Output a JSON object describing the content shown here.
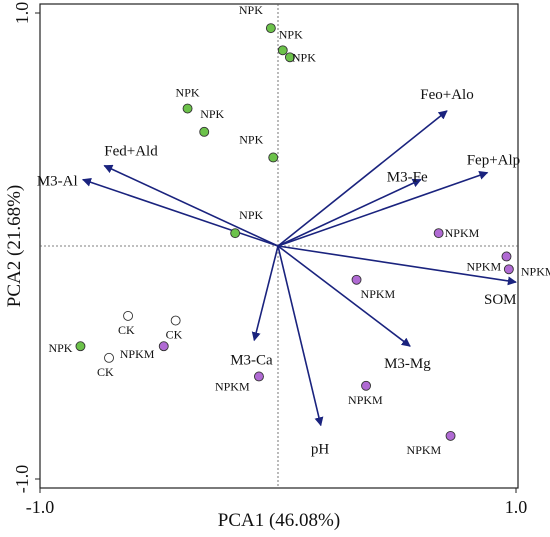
{
  "chart_data": {
    "type": "scatter",
    "title": "",
    "xlabel": "PCA1 (46.08%)",
    "ylabel": "PCA2 (21.68%)",
    "xlim": [
      -1.0,
      1.0
    ],
    "ylim": [
      -1.0,
      1.0
    ],
    "xticks": [
      {
        "value": -1.0,
        "label": "-1.0"
      },
      {
        "value": 1.0,
        "label": "1.0"
      }
    ],
    "yticks": [
      {
        "value": 1.0,
        "label": "1.0"
      },
      {
        "value": -1.0,
        "label": "-1.0"
      }
    ],
    "grid": false,
    "zero_lines": true,
    "colors": {
      "NPK": "#6cc24a",
      "NPKM": "#b06ad3",
      "CK": "#ffffff",
      "vector": "#1a237e",
      "marker_edge": "#333333"
    },
    "points": [
      {
        "group": "NPK",
        "label": "NPK",
        "x": -0.03,
        "y": 0.935
      },
      {
        "group": "NPK",
        "label": "NPK",
        "x": 0.02,
        "y": 0.84
      },
      {
        "group": "NPK",
        "label": "NPK",
        "x": 0.05,
        "y": 0.81
      },
      {
        "group": "NPK",
        "label": "NPK",
        "x": -0.38,
        "y": 0.59
      },
      {
        "group": "NPK",
        "label": "NPK",
        "x": -0.31,
        "y": 0.49
      },
      {
        "group": "NPK",
        "label": "NPK",
        "x": -0.02,
        "y": 0.38
      },
      {
        "group": "NPK",
        "label": "NPK",
        "x": -0.18,
        "y": 0.055
      },
      {
        "group": "NPK",
        "label": "NPK",
        "x": -0.83,
        "y": -0.43
      },
      {
        "group": "NPKM",
        "label": "NPKM",
        "x": 0.675,
        "y": 0.055
      },
      {
        "group": "NPKM",
        "label": "NPKM",
        "x": 0.96,
        "y": -0.045
      },
      {
        "group": "NPKM",
        "label": "NPKM",
        "x": 0.97,
        "y": -0.1
      },
      {
        "group": "NPKM",
        "label": "NPKM",
        "x": 0.33,
        "y": -0.145
      },
      {
        "group": "NPKM",
        "label": "NPKM",
        "x": -0.48,
        "y": -0.43
      },
      {
        "group": "NPKM",
        "label": "NPKM",
        "x": -0.08,
        "y": -0.56
      },
      {
        "group": "NPKM",
        "label": "NPKM",
        "x": 0.37,
        "y": -0.6
      },
      {
        "group": "NPKM",
        "label": "NPKM",
        "x": 0.725,
        "y": -0.815
      },
      {
        "group": "CK",
        "label": "CK",
        "x": -0.63,
        "y": -0.3
      },
      {
        "group": "CK",
        "label": "CK",
        "x": -0.43,
        "y": -0.32
      },
      {
        "group": "CK",
        "label": "CK",
        "x": -0.71,
        "y": -0.48
      }
    ],
    "vectors": [
      {
        "name": "Feo+Alo",
        "x": 0.71,
        "y": 0.58
      },
      {
        "name": "Fep+Alp",
        "x": 0.88,
        "y": 0.315
      },
      {
        "name": "M3-Fe",
        "x": 0.6,
        "y": 0.285
      },
      {
        "name": "Fed+Ald",
        "x": -0.73,
        "y": 0.345
      },
      {
        "name": "M3-Al",
        "x": -0.82,
        "y": 0.285
      },
      {
        "name": "SOM",
        "x": 1.0,
        "y": -0.155
      },
      {
        "name": "M3-Mg",
        "x": 0.555,
        "y": -0.43
      },
      {
        "name": "M3-Ca",
        "x": -0.1,
        "y": -0.405
      },
      {
        "name": "pH",
        "x": 0.18,
        "y": -0.77
      }
    ]
  }
}
